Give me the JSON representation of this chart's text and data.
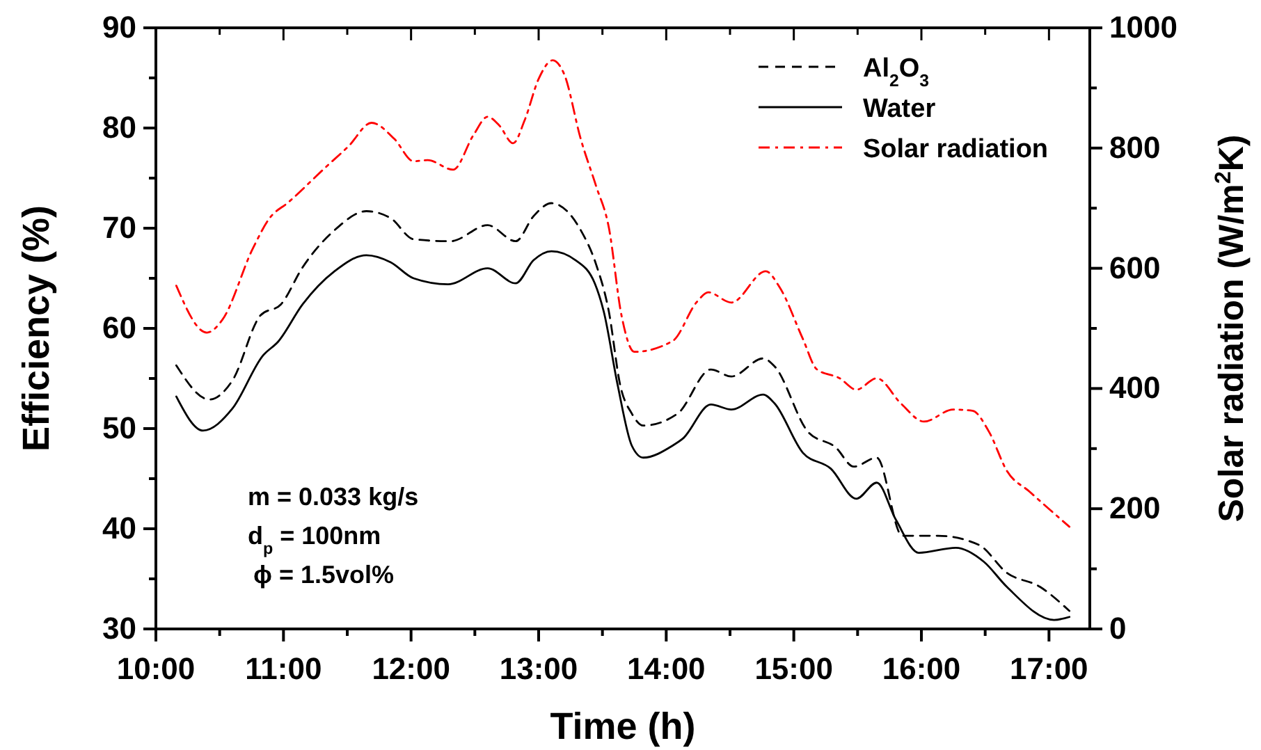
{
  "chart_data": {
    "type": "line",
    "xlabel": "Time (h)",
    "ylabel": "Efficiency (%)",
    "y2label": "Solar radiation (W/m$^{2}$K)",
    "xlim": [
      10,
      17.32
    ],
    "xticks": [
      {
        "value": 10,
        "label": "10:00"
      },
      {
        "value": 10.5,
        "label": null
      },
      {
        "value": 11,
        "label": "11:00"
      },
      {
        "value": 11.5,
        "label": null
      },
      {
        "value": 12,
        "label": "12:00"
      },
      {
        "value": 12.5,
        "label": null
      },
      {
        "value": 13,
        "label": "13:00"
      },
      {
        "value": 13.5,
        "label": null
      },
      {
        "value": 14,
        "label": "14:00"
      },
      {
        "value": 14.5,
        "label": null
      },
      {
        "value": 15,
        "label": "15:00"
      },
      {
        "value": 15.5,
        "label": null
      },
      {
        "value": 16,
        "label": "16:00"
      },
      {
        "value": 16.5,
        "label": null
      },
      {
        "value": 17,
        "label": "17:00"
      }
    ],
    "ylim": [
      30,
      90
    ],
    "yticks": [
      30,
      {
        "value": 35,
        "label": null
      },
      40,
      {
        "value": 45,
        "label": null
      },
      50,
      {
        "value": 55,
        "label": null
      },
      60,
      {
        "value": 65,
        "label": null
      },
      70,
      {
        "value": 75,
        "label": null
      },
      80,
      {
        "value": 85,
        "label": null
      },
      90
    ],
    "y2lim": [
      0,
      1000
    ],
    "y2ticks": [
      0,
      {
        "value": 100,
        "label": null
      },
      200,
      {
        "value": 300,
        "label": null
      },
      400,
      {
        "value": 500,
        "label": null
      },
      600,
      {
        "value": 700,
        "label": null
      },
      800,
      {
        "value": 900,
        "label": null
      },
      1000
    ],
    "grid": false,
    "legend": "top right",
    "marker": "none",
    "annotations": [
      "m = 0.033 kg/s",
      "d$_{p}$ = 100nm",
      "ϕ = 1.5vol%"
    ],
    "series": [
      {
        "name": "Al$_{2}$O$_{3}$",
        "color": "#000000",
        "line_style": "dashed",
        "x": [
          10.16,
          10.42,
          10.6,
          10.82,
          10.98,
          11.15,
          11.4,
          11.65,
          11.84,
          12.02,
          12.31,
          12.6,
          12.82,
          12.96,
          13.1,
          13.33,
          13.45,
          13.55,
          13.64,
          13.73,
          13.82,
          14.09,
          14.35,
          14.51,
          14.76,
          14.85,
          15.11,
          15.33,
          15.47,
          15.65,
          15.85,
          16.13,
          16.45,
          16.67,
          16.93,
          17.16
        ],
        "values": [
          56.3,
          52.9,
          54.8,
          61.3,
          62.4,
          66.1,
          69.8,
          71.7,
          71.0,
          68.9,
          68.7,
          70.3,
          68.7,
          71.2,
          72.5,
          69.8,
          66.4,
          61.7,
          54.3,
          51.5,
          50.3,
          51.5,
          55.9,
          55.2,
          57.0,
          56.2,
          49.7,
          48.1,
          46.2,
          47.1,
          39.3,
          39.3,
          38.4,
          35.6,
          34.2,
          31.8
        ]
      },
      {
        "name": "Water",
        "color": "#000000",
        "line_style": "solid",
        "x": [
          10.16,
          10.37,
          10.6,
          10.84,
          10.96,
          11.15,
          11.4,
          11.65,
          11.84,
          12.02,
          12.29,
          12.6,
          12.82,
          12.96,
          13.1,
          13.29,
          13.44,
          13.51,
          13.62,
          13.73,
          13.82,
          14.05,
          14.13,
          14.35,
          14.51,
          14.76,
          14.85,
          15.07,
          15.29,
          15.49,
          15.65,
          15.8,
          15.98,
          16.27,
          16.49,
          16.67,
          17.04,
          17.16
        ],
        "values": [
          53.2,
          49.8,
          52.0,
          57.3,
          58.7,
          62.4,
          65.7,
          67.3,
          66.6,
          65.0,
          64.4,
          66.0,
          64.5,
          66.8,
          67.7,
          66.8,
          64.5,
          61.7,
          54.3,
          48.3,
          47.1,
          48.3,
          49.0,
          52.4,
          51.9,
          53.4,
          52.5,
          47.6,
          46.0,
          43.0,
          44.6,
          40.9,
          37.6,
          38.1,
          36.7,
          34.2,
          30.9,
          31.2
        ]
      },
      {
        "name": "Solar radiation",
        "color": "#ff0000",
        "line_style": "dashdot",
        "axis": "y2",
        "x": [
          10.16,
          10.4,
          10.52,
          10.76,
          10.89,
          11.04,
          11.33,
          11.51,
          11.69,
          11.87,
          12.02,
          12.13,
          12.33,
          12.49,
          12.6,
          12.69,
          12.8,
          12.89,
          13.0,
          13.11,
          13.2,
          13.33,
          13.45,
          13.55,
          13.65,
          13.75,
          14.05,
          14.24,
          14.33,
          14.51,
          14.78,
          14.89,
          15.07,
          15.18,
          15.36,
          15.49,
          15.65,
          15.84,
          16.02,
          16.25,
          16.4,
          16.53,
          16.67,
          16.85,
          17.16
        ],
        "values": [
          571,
          493,
          514,
          633,
          683,
          710,
          768,
          803,
          842,
          815,
          778,
          780,
          764,
          822,
          852,
          838,
          808,
          846,
          915,
          946,
          923,
          815,
          737,
          668,
          521,
          461,
          479,
          544,
          560,
          543,
          595,
          568,
          483,
          432,
          417,
          398,
          417,
          375,
          345,
          365,
          363,
          328,
          263,
          228,
          170
        ]
      }
    ]
  }
}
